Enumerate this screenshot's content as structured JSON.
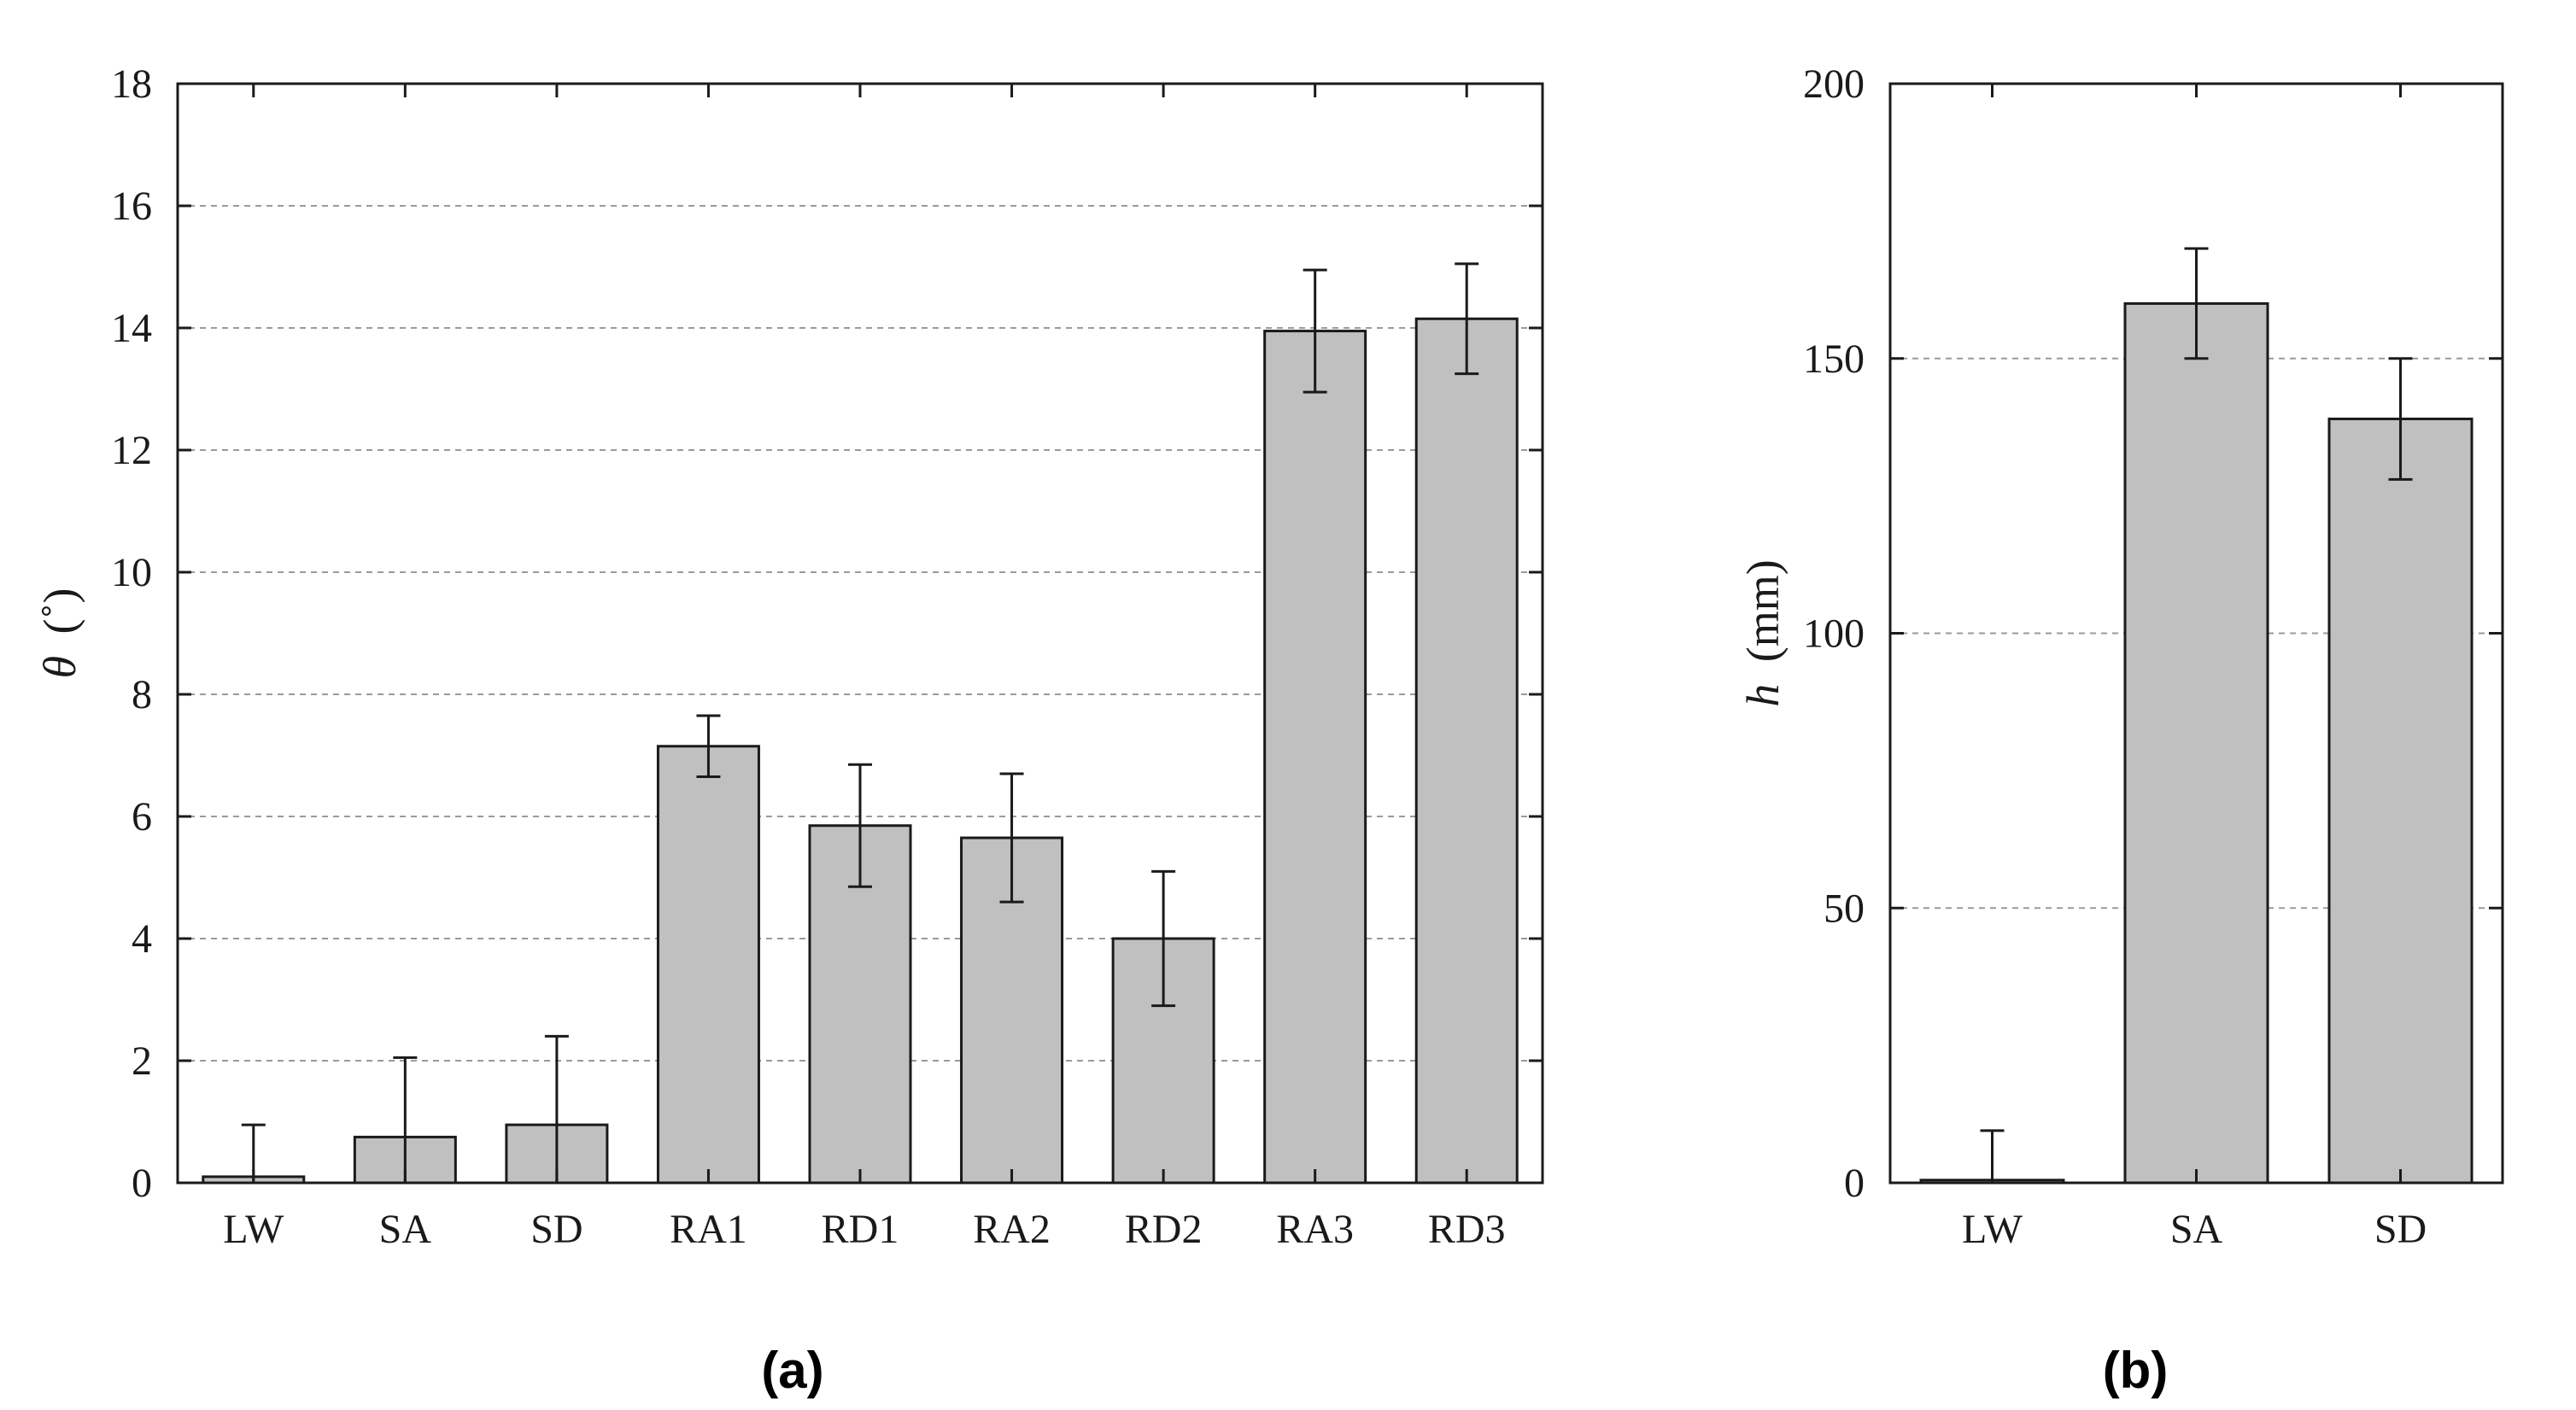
{
  "chart_data": [
    {
      "type": "bar",
      "panel_label": "(a)",
      "ylabel_symbol": "θ",
      "ylabel_unit": "(˚)",
      "categories": [
        "LW",
        "SA",
        "SD",
        "RA1",
        "RD1",
        "RA2",
        "RD2",
        "RA3",
        "RD3"
      ],
      "values": [
        0.1,
        0.75,
        0.95,
        7.15,
        5.85,
        5.65,
        4.0,
        13.95,
        14.15
      ],
      "errors": [
        0.85,
        1.3,
        1.45,
        0.5,
        1.0,
        1.05,
        1.1,
        1.0,
        0.9
      ],
      "ylim": [
        0,
        18
      ],
      "yticks": [
        0,
        2,
        4,
        6,
        8,
        10,
        12,
        14,
        16,
        18
      ],
      "grid": "horizontal dashed",
      "bar_color": "#c0c0c0",
      "edge_color": "#1a1a1a"
    },
    {
      "type": "bar",
      "panel_label": "(b)",
      "ylabel_symbol": "h",
      "ylabel_unit": "(mm)",
      "categories": [
        "LW",
        "SA",
        "SD"
      ],
      "values": [
        0.5,
        160,
        139
      ],
      "errors": [
        9,
        10,
        11
      ],
      "ylim": [
        0,
        200
      ],
      "yticks": [
        0,
        50,
        100,
        150,
        200
      ],
      "grid": "horizontal dashed",
      "bar_color": "#c0c0c0",
      "edge_color": "#1a1a1a"
    }
  ]
}
